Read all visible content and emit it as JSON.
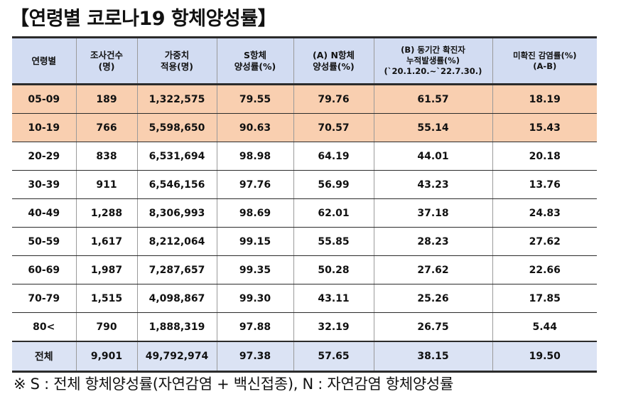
{
  "title": "【연령별 코로나19 항체양성률】",
  "table": {
    "headers": [
      "연령별",
      "조사건수\n(명)",
      "가중치\n적용(명)",
      "S항체\n양성률(%)",
      "(A) N항체\n양성률(%)",
      "(B) 동기간 확진자\n누적발생률(%)\n(`20.1.20.~`22.7.30.)",
      "미확진 감염률(%)\n(A-B)"
    ],
    "rows": [
      [
        "05-09",
        "189",
        "1,322,575",
        "79.55",
        "79.76",
        "61.57",
        "18.19"
      ],
      [
        "10-19",
        "766",
        "5,598,650",
        "90.63",
        "70.57",
        "55.14",
        "15.43"
      ],
      [
        "20-29",
        "838",
        "6,531,694",
        "98.98",
        "64.19",
        "44.01",
        "20.18"
      ],
      [
        "30-39",
        "911",
        "6,546,156",
        "97.76",
        "56.99",
        "43.23",
        "13.76"
      ],
      [
        "40-49",
        "1,288",
        "8,306,993",
        "98.69",
        "62.01",
        "37.18",
        "24.83"
      ],
      [
        "50-59",
        "1,617",
        "8,212,064",
        "99.15",
        "55.85",
        "28.23",
        "27.62"
      ],
      [
        "60-69",
        "1,987",
        "7,287,657",
        "99.35",
        "50.28",
        "27.62",
        "22.66"
      ],
      [
        "70-79",
        "1,515",
        "4,098,867",
        "99.30",
        "43.11",
        "25.26",
        "17.85"
      ],
      [
        "80<",
        "790",
        "1,888,319",
        "97.88",
        "32.19",
        "26.75",
        "5.44"
      ]
    ],
    "total": [
      "전체",
      "9,901",
      "49,792,974",
      "97.38",
      "57.65",
      "38.15",
      "19.50"
    ]
  },
  "footnote": "※ S : 전체 항체양성률(자연감염 + 백신접종), N : 자연감염 항체양성률",
  "colors": {
    "header_bg": "#d2dcf2",
    "highlight_row_bg": "#f9cfb0",
    "total_row_bg": "#dbe3f4",
    "rule": "#2b2b2b"
  }
}
